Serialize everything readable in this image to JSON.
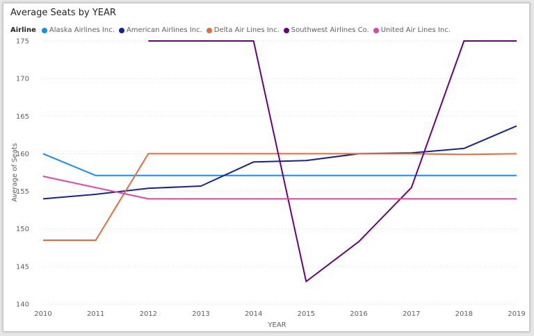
{
  "chart_data": {
    "type": "line",
    "title": "Average Seats by YEAR",
    "xlabel": "YEAR",
    "ylabel": "Average of Seats",
    "legend_title": "Airline",
    "legend_position": "top-left",
    "grid": true,
    "x": [
      2010,
      2011,
      2012,
      2013,
      2014,
      2015,
      2016,
      2017,
      2018,
      2019
    ],
    "ylim": [
      140,
      175
    ],
    "yticks": [
      140,
      145,
      150,
      155,
      160,
      165,
      170,
      175
    ],
    "series": [
      {
        "name": "Alaska Airlines Inc.",
        "color": "#118dff",
        "values": [
          160,
          157.1,
          157.1,
          157.1,
          157.1,
          157.1,
          157.1,
          157.1,
          157.1,
          157.1
        ]
      },
      {
        "name": "American Airlines Inc.",
        "color": "#12239e",
        "values": [
          154,
          154.6,
          155.4,
          155.7,
          158.9,
          159.1,
          160,
          160.1,
          160.7,
          163.7
        ]
      },
      {
        "name": "Delta Air Lines Inc.",
        "color": "#e66c37",
        "values": [
          148.5,
          148.5,
          160,
          160,
          160,
          160,
          160,
          160,
          159.9,
          160
        ]
      },
      {
        "name": "Southwest Airlines Co.",
        "color": "#6b007b",
        "values": [
          null,
          null,
          175,
          175,
          175,
          143,
          148.3,
          155.5,
          175,
          175
        ]
      },
      {
        "name": "United Air Lines Inc.",
        "color": "#e044a7",
        "values": [
          157,
          155.5,
          154,
          154,
          154,
          154,
          154,
          154,
          154,
          154
        ]
      }
    ]
  }
}
